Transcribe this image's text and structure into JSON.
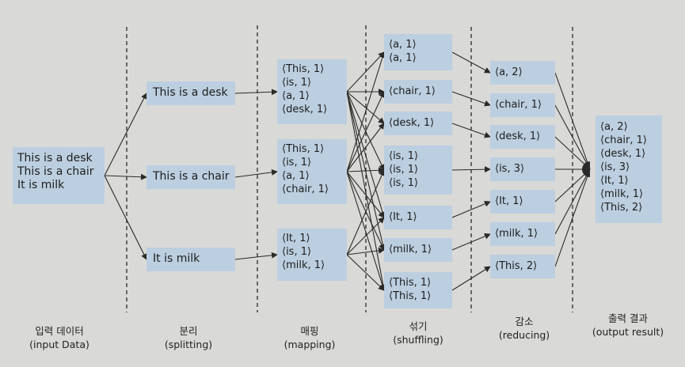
{
  "columns": {
    "input": {
      "title": "입력 데이터",
      "sub": "(input Data)"
    },
    "split": {
      "title": "분리",
      "sub": "(splitting)"
    },
    "map": {
      "title": "매핑",
      "sub": "(mapping)"
    },
    "shuffle": {
      "title": "섞기",
      "sub": "(shuffling)"
    },
    "reduce": {
      "title": "감소",
      "sub": "(reducing)"
    },
    "output": {
      "title": "출력 결과",
      "sub": "(output result)"
    }
  },
  "input_lines": [
    "This is a desk",
    "This is a chair",
    "It is milk"
  ],
  "split_boxes": [
    "This is a desk",
    "This is a chair",
    "It is milk"
  ],
  "map_boxes": [
    [
      "⟨This, 1⟩",
      "⟨is, 1⟩",
      "⟨a, 1⟩",
      "⟨desk, 1⟩"
    ],
    [
      "⟨This, 1⟩",
      "⟨is, 1⟩",
      "⟨a, 1⟩",
      "⟨chair, 1⟩"
    ],
    [
      "⟨It, 1⟩",
      "⟨is, 1⟩",
      "⟨milk, 1⟩"
    ]
  ],
  "shuffle_boxes": [
    [
      "⟨a, 1⟩",
      "⟨a, 1⟩"
    ],
    [
      "⟨chair, 1⟩"
    ],
    [
      "⟨desk, 1⟩"
    ],
    [
      "⟨is, 1⟩",
      "⟨is, 1⟩",
      "⟨is, 1⟩"
    ],
    [
      "⟨It, 1⟩"
    ],
    [
      "⟨milk, 1⟩"
    ],
    [
      "⟨This, 1⟩",
      "⟨This, 1⟩"
    ]
  ],
  "reduce_boxes": [
    "⟨a, 2⟩",
    "⟨chair, 1⟩",
    "⟨desk, 1⟩",
    "⟨is, 3⟩",
    "⟨It, 1⟩",
    "⟨milk, 1⟩",
    "⟨This, 2⟩"
  ],
  "output_lines": [
    "⟨a, 2⟩",
    "⟨chair, 1⟩",
    "⟨desk, 1⟩",
    "⟨is, 3⟩",
    "⟨It, 1⟩",
    "⟨milk, 1⟩",
    "⟨This, 2⟩"
  ],
  "colors": {
    "box": "#bccfe0",
    "line": "#2a2a2a",
    "background": "#d9d9d7"
  }
}
